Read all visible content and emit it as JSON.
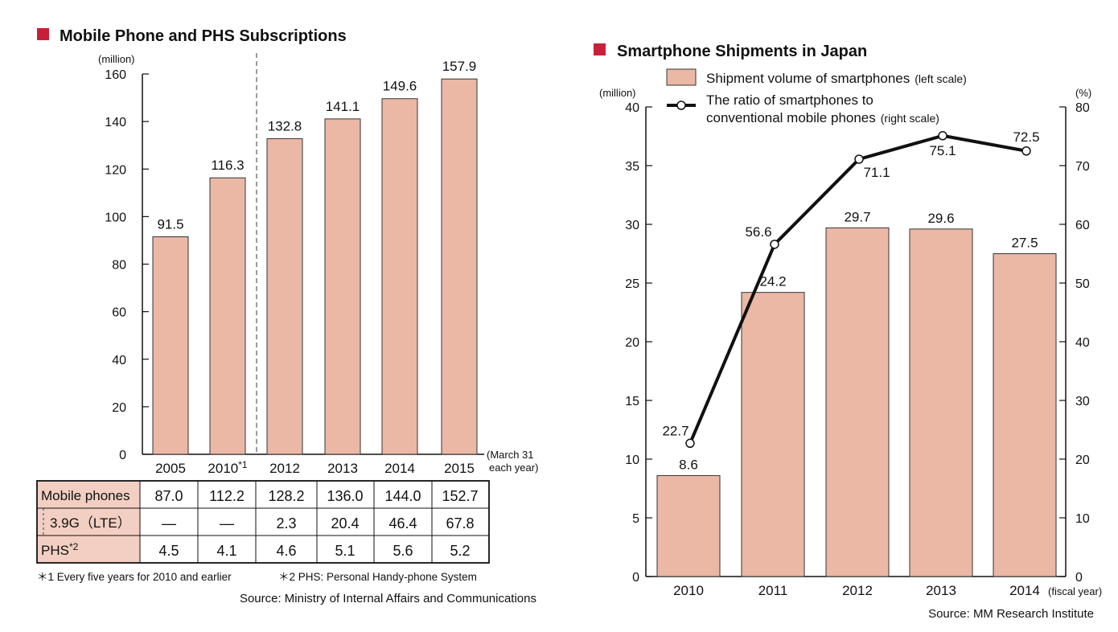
{
  "colors": {
    "bar": "#ebb8a6",
    "bar_stroke": "#333333",
    "accent": "#c8203a",
    "header_fill": "#f2cfc2",
    "line": "#111111"
  },
  "chart_data": [
    {
      "type": "bar",
      "title": "Mobile Phone and PHS Subscriptions",
      "ylabel": "(million)",
      "ylim": [
        0,
        160
      ],
      "yticks": [
        0,
        20,
        40,
        60,
        80,
        100,
        120,
        140,
        160
      ],
      "categories": [
        "2005",
        "2010",
        "2012",
        "2013",
        "2014",
        "2015"
      ],
      "category_marks": [
        "",
        "*1",
        "",
        "",
        "",
        ""
      ],
      "values": [
        91.5,
        116.3,
        132.8,
        141.1,
        149.6,
        157.9
      ],
      "x_note": [
        "(March 31",
        "each year)"
      ],
      "table": {
        "rows": [
          {
            "label": "Mobile phones",
            "mark": "",
            "values": [
              "87.0",
              "112.2",
              "128.2",
              "136.0",
              "144.0",
              "152.7"
            ]
          },
          {
            "label": "3.9G（LTE）",
            "mark": "",
            "values": [
              "—",
              "—",
              "2.3",
              "20.4",
              "46.4",
              "67.8"
            ]
          },
          {
            "label": "PHS",
            "mark": "*2",
            "values": [
              "4.5",
              "4.1",
              "4.6",
              "5.1",
              "5.6",
              "5.2"
            ]
          }
        ]
      },
      "footnotes": [
        "＊1 Every five years for 2010 and earlier",
        "＊2 PHS: Personal Handy-phone System"
      ],
      "source": "Source: Ministry of Internal Affairs and Communications"
    },
    {
      "type": "bar+line",
      "title": "Smartphone Shipments in Japan",
      "ylabel_left": "(million)",
      "ylabel_right": "(%)",
      "ylim_left": [
        0,
        40
      ],
      "ylim_right": [
        0,
        80
      ],
      "yticks_left": [
        0,
        5,
        10,
        15,
        20,
        25,
        30,
        35,
        40
      ],
      "yticks_right": [
        0,
        10,
        20,
        30,
        40,
        50,
        60,
        70,
        80
      ],
      "categories": [
        "2010",
        "2011",
        "2012",
        "2013",
        "2014"
      ],
      "x_note": "(fiscal year)",
      "series": [
        {
          "values": [
            8.6,
            24.2,
            29.7,
            29.6,
            27.5
          ]
        },
        {
          "values": [
            22.7,
            56.6,
            71.1,
            75.1,
            72.5
          ]
        }
      ],
      "legend": {
        "bar_label": "Shipment volume of smartphones",
        "bar_note": "(left scale)",
        "line_label_1": "The ratio of smartphones to",
        "line_label_2": "conventional mobile  phones",
        "line_note": "(right scale)"
      },
      "source": "Source: MM Research Institute"
    }
  ]
}
